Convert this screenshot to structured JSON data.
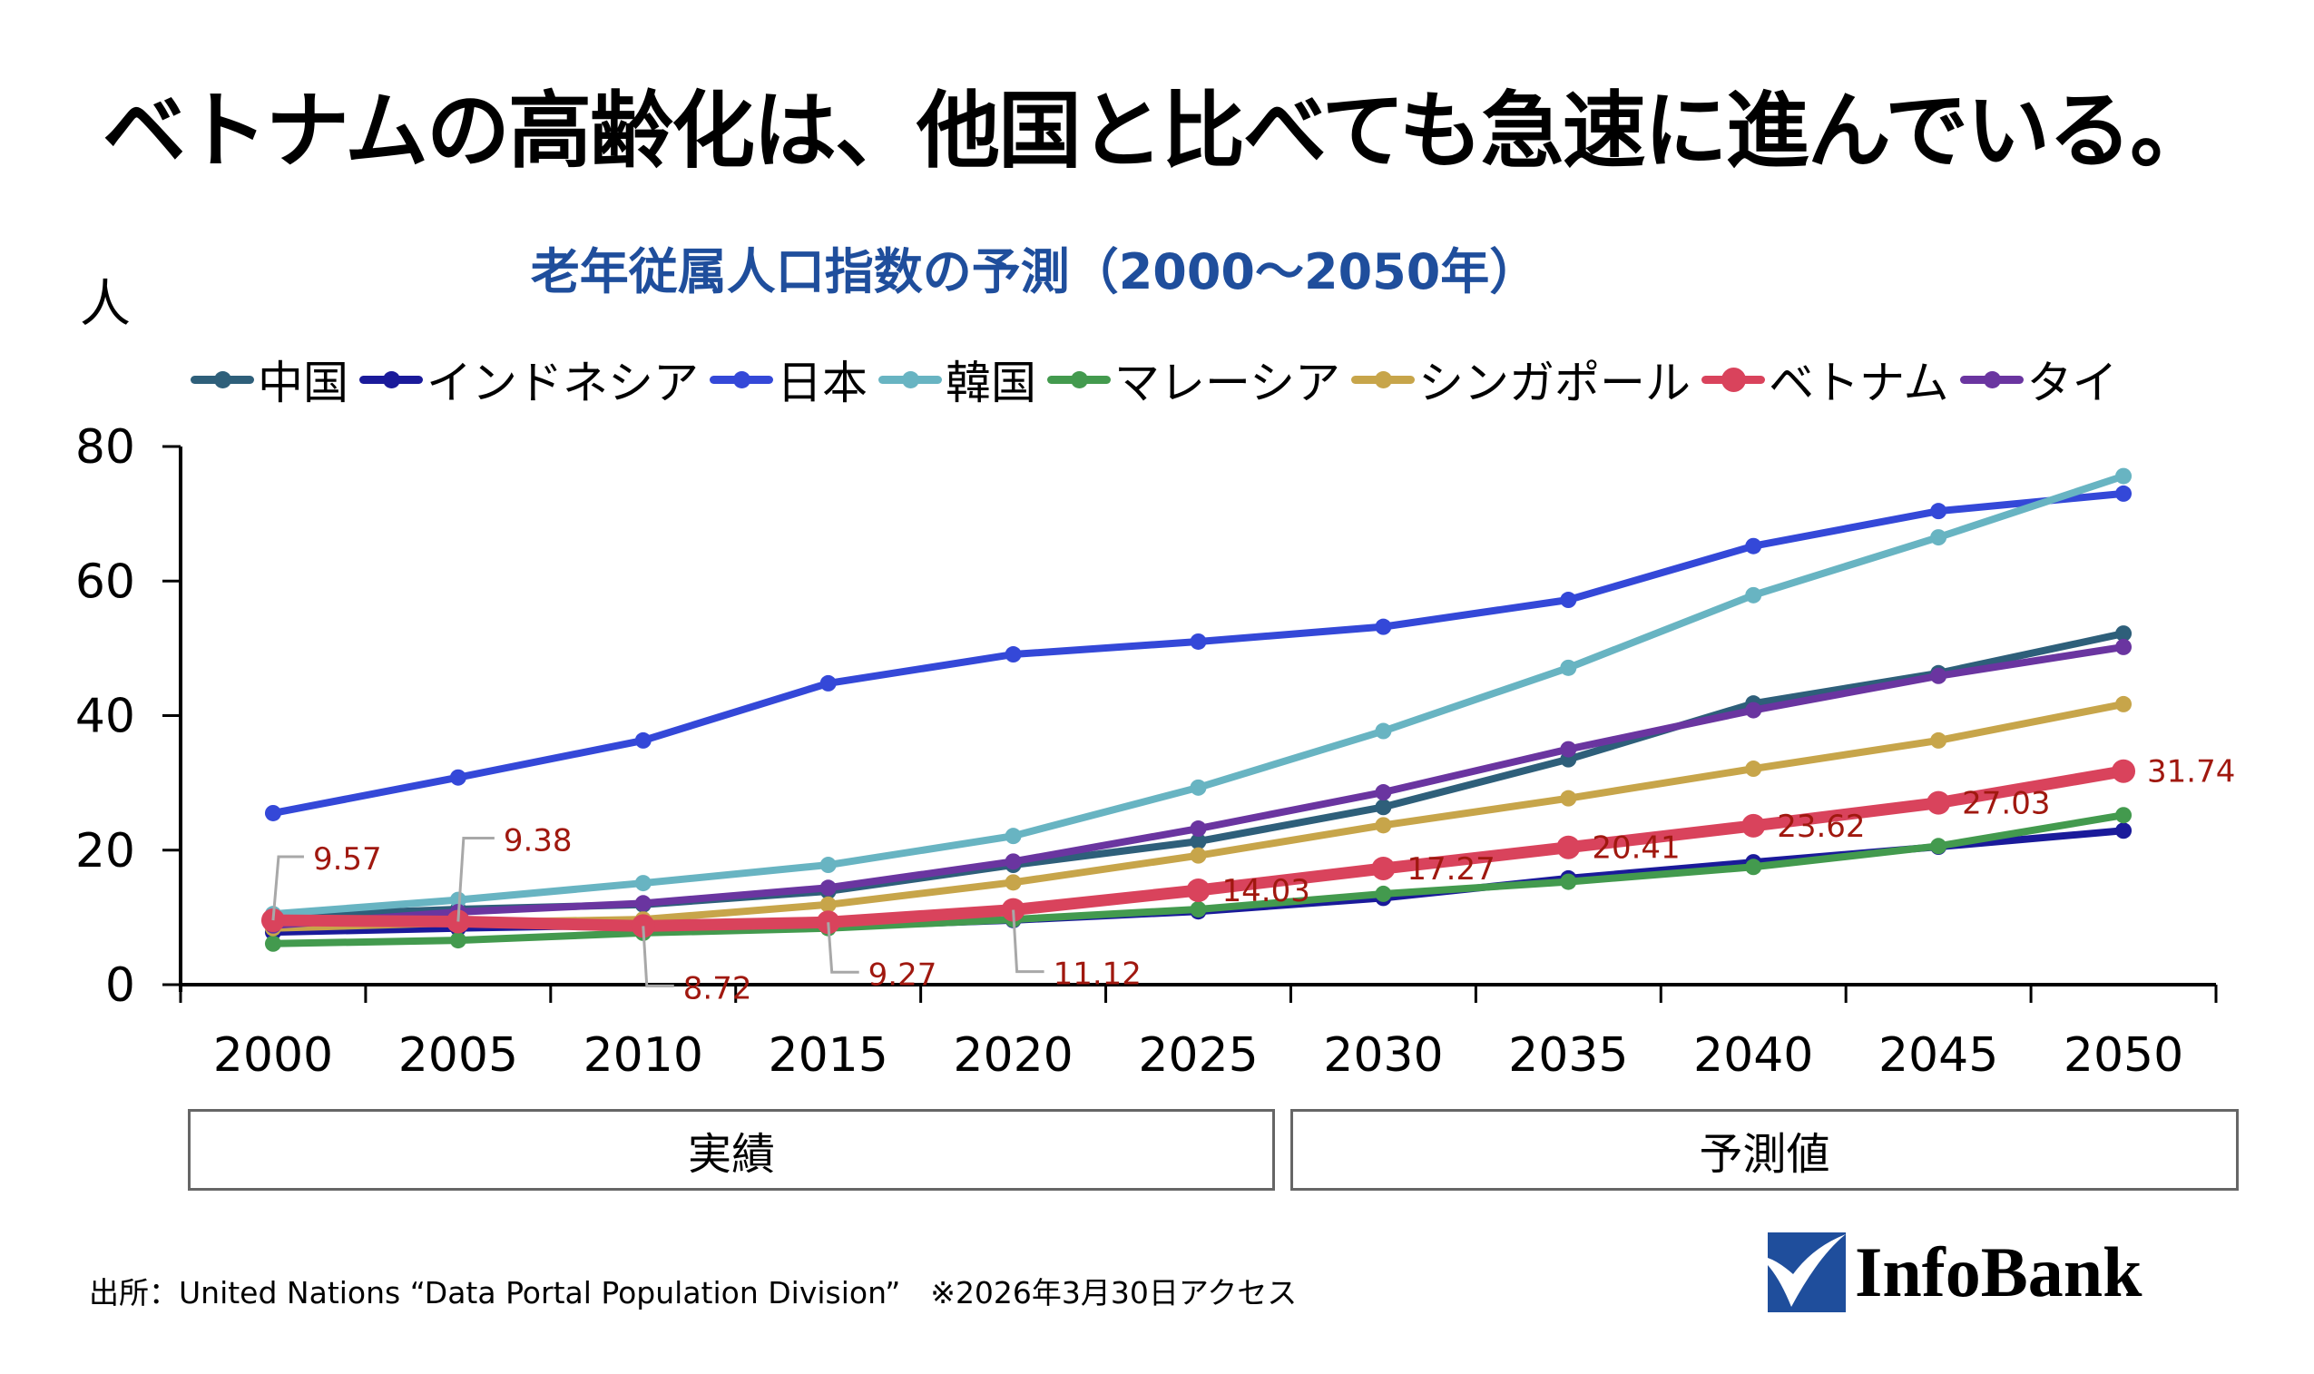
{
  "title": "ベトナムの高齢化は、他国と比べても急速に進んでいる。",
  "chart_data": {
    "type": "line",
    "title": "老年従属人口指数の予測（2000～2050年）",
    "ylabel": "人",
    "xlabel": "",
    "ylim": [
      0,
      80
    ],
    "yticks": [
      "0",
      "20",
      "40",
      "60",
      "80"
    ],
    "ytick_values": [
      0,
      20,
      40,
      60,
      80
    ],
    "grid": false,
    "legend_position": "top",
    "categories": [
      "2000",
      "2005",
      "2010",
      "2015",
      "2020",
      "2025",
      "2030",
      "2035",
      "2040",
      "2045",
      "2050"
    ],
    "series": [
      {
        "name": "中国",
        "color": "#2E5F7A",
        "values": [
          10.2,
          11.2,
          11.9,
          13.9,
          17.8,
          21.3,
          26.4,
          33.5,
          41.8,
          46.3,
          52.2
        ]
      },
      {
        "name": "インドネシア",
        "color": "#1A1A9A",
        "values": [
          7.8,
          8.4,
          8.9,
          8.6,
          9.6,
          10.9,
          12.9,
          15.8,
          18.2,
          20.5,
          22.9
        ]
      },
      {
        "name": "日本",
        "color": "#3448D8",
        "values": [
          25.5,
          30.8,
          36.3,
          44.8,
          49.1,
          51.0,
          53.2,
          57.2,
          65.2,
          70.4,
          73.0
        ]
      },
      {
        "name": "韓国",
        "color": "#68B4C2",
        "values": [
          10.5,
          12.6,
          15.1,
          17.8,
          22.1,
          29.3,
          37.7,
          47.1,
          57.9,
          66.5,
          75.6
        ]
      },
      {
        "name": "マレーシア",
        "color": "#439A4E",
        "values": [
          6.1,
          6.6,
          7.7,
          8.4,
          9.7,
          11.2,
          13.5,
          15.3,
          17.5,
          20.6,
          25.2
        ]
      },
      {
        "name": "シンガポール",
        "color": "#C7A54A",
        "values": [
          8.4,
          9.2,
          9.7,
          11.9,
          15.2,
          19.2,
          23.7,
          27.7,
          32.1,
          36.3,
          41.7
        ]
      },
      {
        "name": "ベトナム",
        "color": "#D9435C",
        "highlight": true,
        "values": [
          9.57,
          9.38,
          8.72,
          9.27,
          11.12,
          14.03,
          17.27,
          20.41,
          23.62,
          27.03,
          31.74
        ]
      },
      {
        "name": "タイ",
        "color": "#6A35A0",
        "values": [
          8.8,
          10.8,
          12.1,
          14.4,
          18.3,
          23.2,
          28.6,
          35.0,
          40.8,
          45.9,
          50.2
        ]
      }
    ],
    "data_labels": {
      "series": "ベトナム",
      "color": "#A0180F",
      "leader_color": "#A8A8A8",
      "labels": [
        "9.57",
        "9.38",
        "8.72",
        "9.27",
        "11.12",
        "14.03",
        "17.27",
        "20.41",
        "23.62",
        "27.03",
        "31.74"
      ],
      "leader_line": [
        true,
        true,
        true,
        true,
        true,
        false,
        false,
        false,
        false,
        false,
        false
      ],
      "below": [
        false,
        false,
        true,
        true,
        true,
        false,
        false,
        false,
        false,
        false,
        false
      ]
    },
    "periods": [
      {
        "label": "実績",
        "from": "2000",
        "to": "2025"
      },
      {
        "label": "予測値",
        "from": "2030",
        "to": "2050"
      }
    ]
  },
  "source": "出所：United Nations “Data Portal  Population Division”　※2026年3月30日アクセス",
  "logo": {
    "text": "InfoBank",
    "color": "#1F4E9C"
  }
}
